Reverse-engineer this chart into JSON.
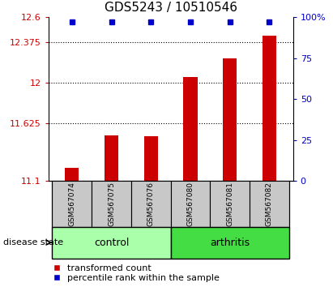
{
  "title": "GDS5243 / 10510546",
  "samples": [
    "GSM567074",
    "GSM567075",
    "GSM567076",
    "GSM567080",
    "GSM567081",
    "GSM567082"
  ],
  "red_values": [
    11.22,
    11.52,
    11.51,
    12.05,
    12.22,
    12.43
  ],
  "blue_values": [
    97,
    97,
    97,
    97,
    97,
    97
  ],
  "ylim_left": [
    11.1,
    12.6
  ],
  "ylim_right": [
    0,
    100
  ],
  "yticks_left": [
    11.1,
    11.625,
    12.0,
    12.375,
    12.6
  ],
  "ytick_labels_left": [
    "11.1",
    "11.625",
    "12",
    "12.375",
    "12.6"
  ],
  "yticks_right": [
    0,
    25,
    50,
    75,
    100
  ],
  "ytick_labels_right": [
    "0",
    "25",
    "50",
    "75",
    "100%"
  ],
  "grid_lines": [
    11.625,
    12.0,
    12.375
  ],
  "bar_color": "#cc0000",
  "dot_color": "#0000cc",
  "control_color": "#aaffaa",
  "arthritis_color": "#44dd44",
  "label_color_left": "#cc0000",
  "label_color_right": "#0000cc",
  "bar_width": 0.35,
  "sample_box_color": "#c8c8c8",
  "disease_state_label": "disease state",
  "control_label": "control",
  "arthritis_label": "arthritis",
  "legend_label_red": "transformed count",
  "legend_label_blue": "percentile rank within the sample",
  "title_fontsize": 11,
  "tick_fontsize": 8,
  "sample_fontsize": 6.5,
  "group_fontsize": 9,
  "legend_fontsize": 8
}
